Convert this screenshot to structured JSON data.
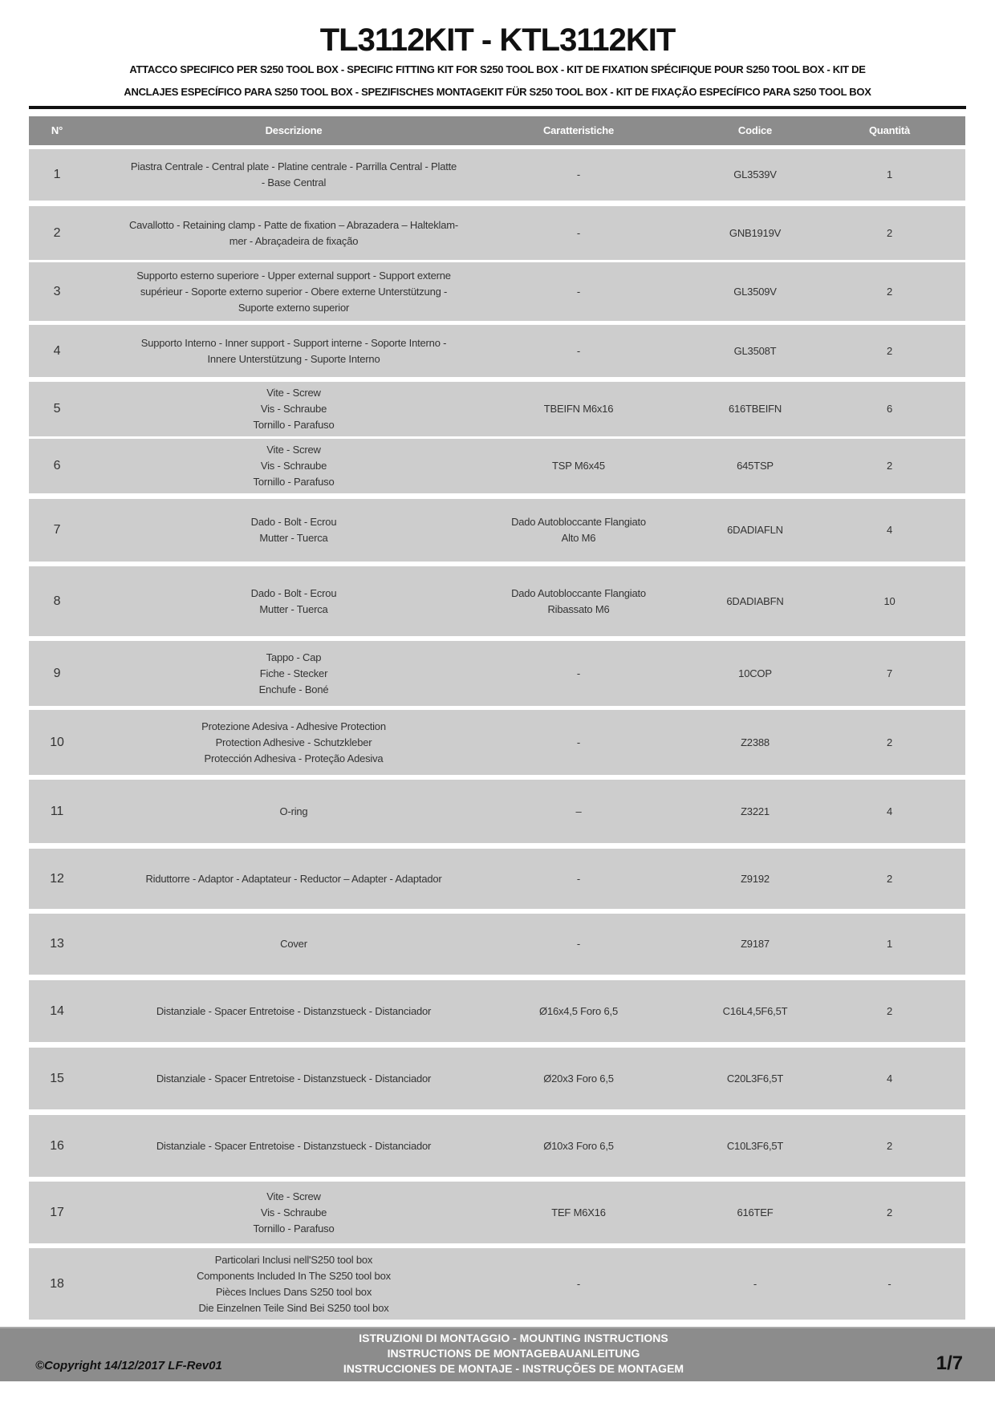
{
  "header": {
    "title": "TL3112KIT - KTL3112KIT",
    "subtitle_line1": "ATTACCO SPECIFICO PER S250 TOOL BOX - SPECIFIC FITTING KIT FOR S250 TOOL BOX - KIT DE FIXATION SPÉCIFIQUE POUR S250 TOOL BOX - KIT DE",
    "subtitle_line2": "ANCLAJES ESPECÍFICO PARA S250 TOOL BOX - SPEZIFISCHES MONTAGEKIT FÜR S250 TOOL BOX - KIT DE FIXAÇÃO ESPECÍFICO PARA S250 TOOL BOX"
  },
  "table": {
    "columns": [
      "N°",
      "Descrizione",
      "Caratteristiche",
      "Codice",
      "Quantità"
    ],
    "rows": [
      {
        "n": "1",
        "desc": "Piastra Centrale - Central plate - Platine centrale - Parrilla Central - Platte\n- Base Central",
        "car": "-",
        "code": "GL3539V",
        "qty": "1"
      },
      {
        "n": "2",
        "desc": "Cavallotto - Retaining clamp - Patte de fixation – Abrazadera – Halteklam-\nmer - Abraçadeira de fixação",
        "car": "-",
        "code": "GNB1919V",
        "qty": "2"
      },
      {
        "n": "3",
        "desc": "Supporto esterno superiore -  Upper external support - Support externe\nsupérieur - Soporte externo superior - Obere externe Unterstützung -\nSuporte externo superior",
        "car": "-",
        "code": "GL3509V",
        "qty": "2"
      },
      {
        "n": "4",
        "desc": "Supporto Interno - Inner support - Support interne - Soporte Interno -\nInnere Unterstützung - Suporte Interno",
        "car": "-",
        "code": "GL3508T",
        "qty": "2"
      },
      {
        "n": "5",
        "desc": "Vite - Screw\nVis - Schraube\nTornillo - Parafuso",
        "car": "TBEIFN M6x16",
        "code": "616TBEIFN",
        "qty": "6"
      },
      {
        "n": "6",
        "desc": "Vite - Screw\nVis - Schraube\nTornillo - Parafuso",
        "car": "TSP M6x45",
        "code": "645TSP",
        "qty": "2"
      },
      {
        "n": "7",
        "desc": "Dado - Bolt - Ecrou\nMutter - Tuerca",
        "car": "Dado Autobloccante Flangiato\nAlto M6",
        "code": "6DADIAFLN",
        "qty": "4"
      },
      {
        "n": "8",
        "desc": "Dado - Bolt - Ecrou\nMutter - Tuerca",
        "car": "Dado Autobloccante Flangiato\nRibassato M6",
        "code": "6DADIABFN",
        "qty": "10"
      },
      {
        "n": "9",
        "desc": "Tappo - Cap\nFiche - Stecker\nEnchufe - Boné",
        "car": "-",
        "code": "10COP",
        "qty": "7"
      },
      {
        "n": "10",
        "desc": "Protezione Adesiva - Adhesive Protection\nProtection Adhesive - Schutzkleber\nProtección Adhesiva - Proteção Adesiva",
        "car": "-",
        "code": "Z2388",
        "qty": "2"
      },
      {
        "n": "11",
        "desc": "O-ring",
        "car": "–",
        "code": "Z3221",
        "qty": "4"
      },
      {
        "n": "12",
        "desc": "Riduttorre - Adaptor - Adaptateur - Reductor – Adapter - Adaptador",
        "car": "-",
        "code": "Z9192",
        "qty": "2"
      },
      {
        "n": "13",
        "desc": "Cover",
        "car": "-",
        "code": "Z9187",
        "qty": "1"
      },
      {
        "n": "14",
        "desc": "Distanziale - Spacer Entretoise - Distanzstueck - Distanciador",
        "car": "Ø16x4,5 Foro 6,5",
        "code": "C16L4,5F6,5T",
        "qty": "2"
      },
      {
        "n": "15",
        "desc": "Distanziale - Spacer Entretoise - Distanzstueck - Distanciador",
        "car": "Ø20x3 Foro 6,5",
        "code": "C20L3F6,5T",
        "qty": "4"
      },
      {
        "n": "16",
        "desc": "Distanziale - Spacer Entretoise - Distanzstueck - Distanciador",
        "car": "Ø10x3 Foro 6,5",
        "code": "C10L3F6,5T",
        "qty": "2"
      },
      {
        "n": "17",
        "desc": "Vite - Screw\nVis - Schraube\nTornillo - Parafuso",
        "car": "TEF M6X16",
        "code": "616TEF",
        "qty": "2"
      },
      {
        "n": "18",
        "desc": "Particolari Inclusi nell'S250 tool box\nComponents Included In The S250 tool box\nPièces Inclues Dans S250 tool box\nDie Einzelnen Teile Sind Bei S250 tool box",
        "car": "-",
        "code": "-",
        "qty": "-"
      }
    ]
  },
  "footer": {
    "copyright": "©Copyright 14/12/2017 LF-Rev01",
    "instructions": [
      "ISTRUZIONI DI MONTAGGIO  -  MOUNTING INSTRUCTIONS",
      "INSTRUCTIONS DE MONTAGEBAUANLEITUNG",
      "INSTRUCCIONES DE MONTAJE - INSTRUÇÕES DE MONTAGEM"
    ],
    "page": "1/7"
  }
}
